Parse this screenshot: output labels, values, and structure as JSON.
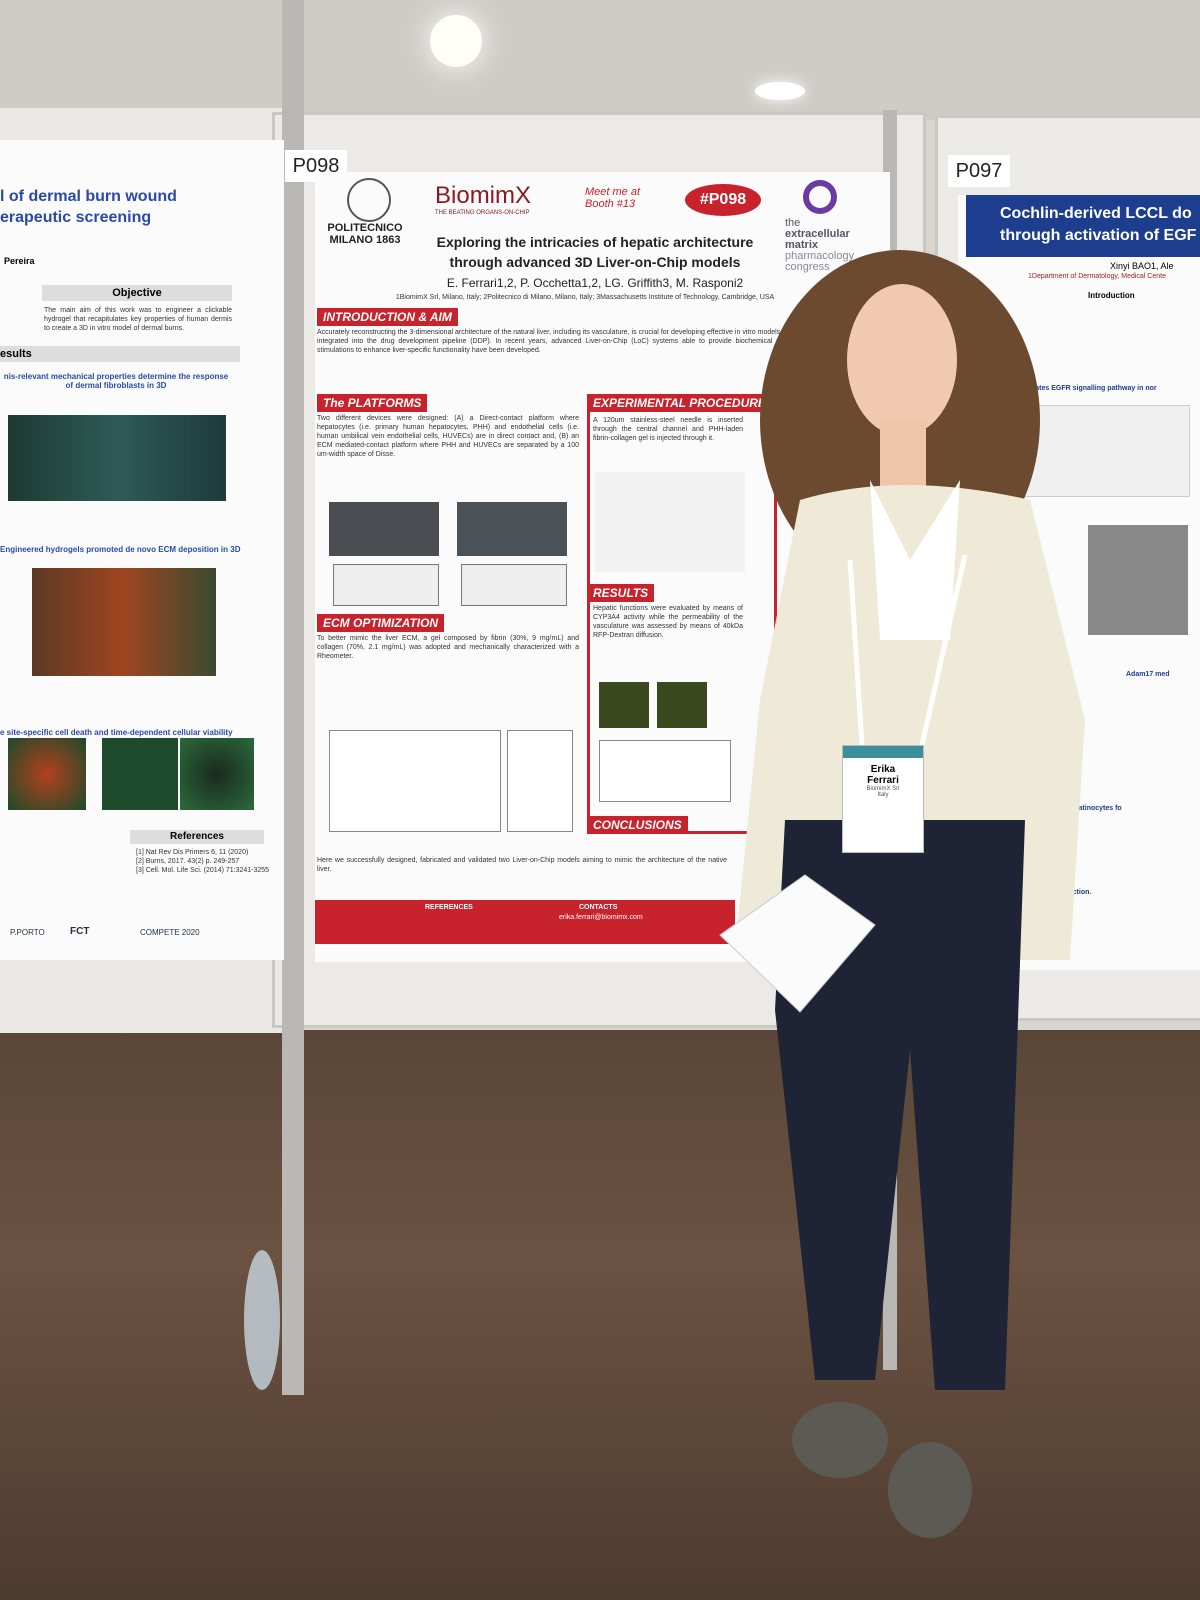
{
  "scene": {
    "labels": {
      "center": "P098",
      "right": "P097"
    }
  },
  "posters": {
    "left": {
      "title_lines": [
        "l of dermal burn wound",
        "erapeutic screening"
      ],
      "author": "Pereira",
      "objective_heading": "Objective",
      "objective_text": "The main aim of this work was to engineer a clickable hydrogel that recapitulates key properties of human dermis to create a 3D in vitro model of dermal burns.",
      "results_heading": "esults",
      "figure_headings": [
        "nis-relevant mechanical properties determine the response of dermal fibroblasts in 3D",
        "Engineered hydrogels promoted de novo ECM deposition in 3D",
        "e site-specific cell death and time-dependent cellular viability"
      ],
      "references_heading": "References",
      "references": [
        "[1] Nat Rev Dis Primers 6, 11 (2020)",
        "[2] Burns, 2017. 43(2) p. 249-257",
        "[3] Cell. Mol. Life Sci. (2014) 71:3241-3255"
      ],
      "logos": [
        "P.PORTO",
        "FCT",
        "COMPETE 2020"
      ]
    },
    "center": {
      "institution": "POLITECNICO MILANO 1863",
      "brand": "BiomimX",
      "brand_tagline": "THE BEATING ORGANS-ON-CHIP",
      "booth": "Meet me at Booth #13",
      "badge": "#P098",
      "congress": [
        "the",
        "extracellular",
        "matrix",
        "pharmacology",
        "congress"
      ],
      "title_lines": [
        "Exploring the intricacies of hepatic architecture",
        "through advanced 3D Liver-on-Chip models"
      ],
      "authors": "E. Ferrari1,2, P. Occhetta1,2, LG. Griffith3, M. Rasponi2",
      "affiliations": "1BiomimX Srl, Milano, Italy; 2Politecnico di Milano, Milano, Italy; 3Massachusetts Institute of Technology, Cambridge, USA",
      "sections": {
        "intro": "INTRODUCTION & AIM",
        "platforms": "The PLATFORMS",
        "procedure": "EXPERIMENTAL PROCEDURE",
        "ecm": "ECM OPTIMIZATION",
        "results": "RESULTS",
        "conclusions": "CONCLUSIONS"
      },
      "intro_text": "Accurately reconstructing the 3-dimensional architecture of the natural liver, including its vasculature, is crucial for developing effective in vitro models that can be integrated into the drug development pipeline (DDP). In recent years, advanced Liver-on-Chip (LoC) systems able to provide biochemical and physical stimulations to enhance liver-specific functionality have been developed.",
      "platforms_text": "Two different devices were designed: (A) a Direct-contact platform where hepatocytes (i.e. primary human hepatocytes, PHH) and endothelial cells (i.e. human umbilical vein endothelial cells, HUVECs) are in direct contact and, (B) an ECM mediated-contact platform where PHH and HUVECs are separated by a 100 um-width space of Disse.",
      "ecm_text": "To better mimic the liver ECM, a gel composed by fibrin (30%, 9 mg/mL) and collagen (70%, 2.1 mg/mL) was adopted and mechanically characterized with a Rheometer.",
      "procedure_text": "A 120um stainless-steel needle is inserted through the central channel and PHH-laden fibrin-collagen gel is injected through it.",
      "results_text": "Hepatic functions were evaluated by means of CYP3A4 activity while the permeability of the vasculature was assessed by means of 40kDa RFP-Dextran diffusion.",
      "conclusions_text": "Here we successfully designed, fabricated and validated two Liver-on-Chip models aiming to mimic the architecture of the native liver.",
      "footer": {
        "references": "REFERENCES",
        "contacts": "CONTACTS",
        "email": "erika.ferrari@biomimx.com"
      }
    },
    "right": {
      "title_lines": [
        "Cochlin-derived LCCL do",
        "through activation of EGF"
      ],
      "author": "Xinyi BAO1, Ale",
      "department": "1Department of Dermatology, Medical Cente",
      "intro_heading": "Introduction",
      "subheadings": [
        "LCCL domain activates EGFR signalling pathway in nor",
        "Adam17 med",
        "s normal human keratinocytes fo",
        "on cytokine production."
      ]
    }
  },
  "badge": {
    "first_name": "Erika",
    "last_name": "Ferrari",
    "company": "BiomimX Srl",
    "country": "Italy"
  }
}
